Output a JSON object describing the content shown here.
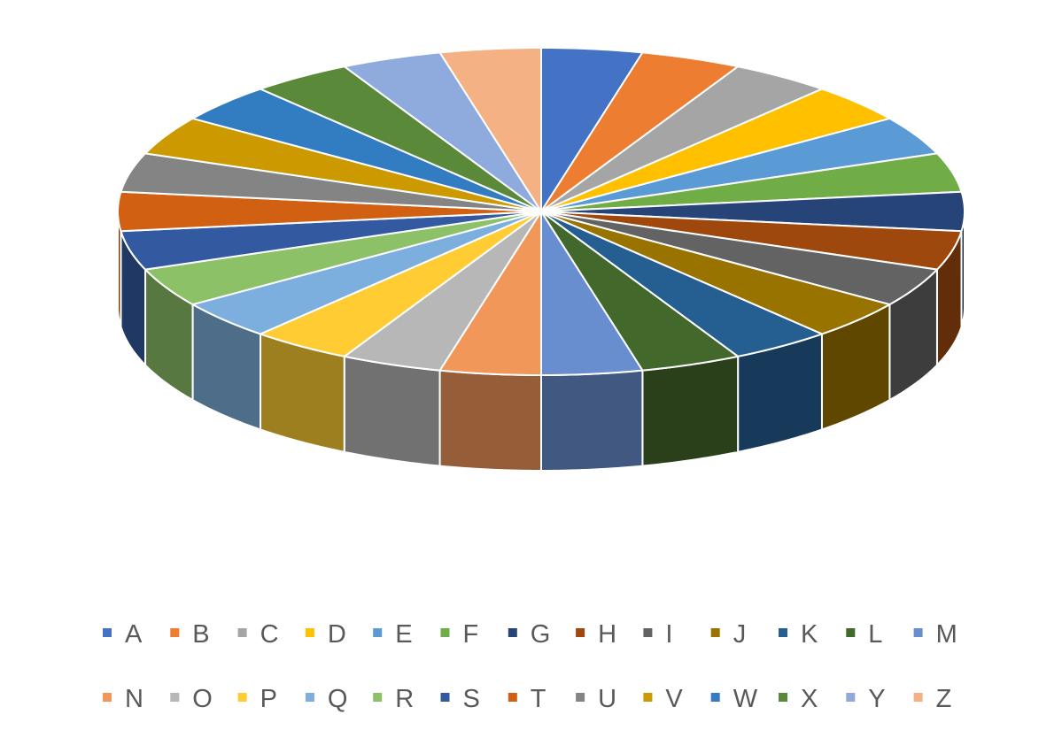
{
  "chart_data": {
    "type": "pie",
    "variant": "3d",
    "title": "",
    "legend_position": "bottom",
    "categories": [
      "A",
      "B",
      "C",
      "D",
      "E",
      "F",
      "G",
      "H",
      "I",
      "J",
      "K",
      "L",
      "M",
      "N",
      "O",
      "P",
      "Q",
      "R",
      "S",
      "T",
      "U",
      "V",
      "W",
      "X",
      "Y",
      "Z"
    ],
    "values": [
      1,
      1,
      1,
      1,
      1,
      1,
      1,
      1,
      1,
      1,
      1,
      1,
      1,
      1,
      1,
      1,
      1,
      1,
      1,
      1,
      1,
      1,
      1,
      1,
      1,
      1
    ],
    "colors": [
      "#4472C4",
      "#ED7D31",
      "#A5A5A5",
      "#FFC000",
      "#5B9BD5",
      "#70AD47",
      "#264478",
      "#9E480E",
      "#636363",
      "#997300",
      "#255E91",
      "#43682B",
      "#698ED0",
      "#F1975A",
      "#B7B7B7",
      "#FFCD33",
      "#7CAFDD",
      "#8CC168",
      "#335AA1",
      "#D26012",
      "#848484",
      "#CC9A00",
      "#327DC2",
      "#5A8A39",
      "#8FAADC",
      "#F4B183"
    ]
  }
}
